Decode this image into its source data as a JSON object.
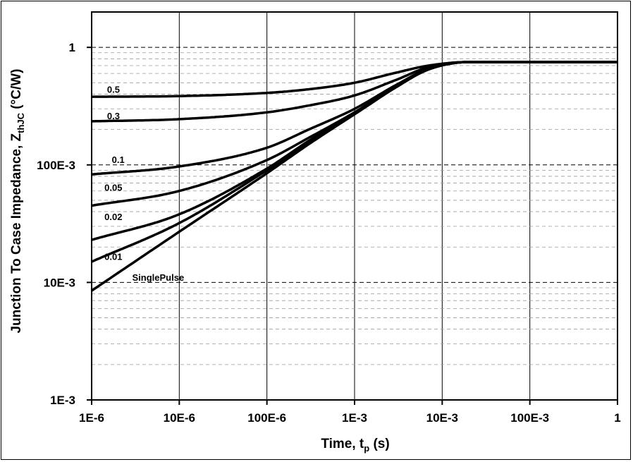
{
  "chart_data": {
    "type": "line",
    "title": "",
    "xlabel": {
      "main": "Time, t",
      "sub": "p",
      "unit": " (s)"
    },
    "ylabel": {
      "main": "Junction To Case Impedance, Z",
      "sub": "thJC",
      "unit": " (°C/W)"
    },
    "x_scale": "log",
    "y_scale": "log",
    "xlim": [
      1e-06,
      1
    ],
    "ylim": [
      0.001,
      2
    ],
    "x_ticks": [
      {
        "value": 1e-06,
        "label": "1E-6"
      },
      {
        "value": 1e-05,
        "label": "10E-6"
      },
      {
        "value": 0.0001,
        "label": "100E-6"
      },
      {
        "value": 0.001,
        "label": "1E-3"
      },
      {
        "value": 0.01,
        "label": "10E-3"
      },
      {
        "value": 0.1,
        "label": "100E-3"
      },
      {
        "value": 1,
        "label": "1"
      }
    ],
    "y_ticks": [
      {
        "value": 0.001,
        "label": "1E-3"
      },
      {
        "value": 0.01,
        "label": "10E-3"
      },
      {
        "value": 0.1,
        "label": "100E-3"
      },
      {
        "value": 1,
        "label": "1"
      }
    ],
    "grid": {
      "x_major": true,
      "y_major_dashed": true,
      "y_minor_dashed": true
    },
    "series": [
      {
        "name": "0.5",
        "x": [
          1e-06,
          1e-05,
          0.0001,
          0.0003,
          0.001,
          0.003,
          0.007,
          0.02,
          0.1,
          1
        ],
        "y": [
          0.38,
          0.385,
          0.41,
          0.44,
          0.5,
          0.61,
          0.7,
          0.75,
          0.75,
          0.75
        ]
      },
      {
        "name": "0.3",
        "x": [
          1e-06,
          1e-05,
          0.0001,
          0.0003,
          0.001,
          0.003,
          0.007,
          0.02,
          0.1,
          1
        ],
        "y": [
          0.235,
          0.245,
          0.28,
          0.32,
          0.39,
          0.53,
          0.68,
          0.75,
          0.75,
          0.75
        ]
      },
      {
        "name": "0.1",
        "x": [
          1e-06,
          1e-05,
          0.0001,
          0.0003,
          0.001,
          0.003,
          0.007,
          0.02,
          0.1,
          1
        ],
        "y": [
          0.083,
          0.097,
          0.14,
          0.2,
          0.3,
          0.48,
          0.66,
          0.75,
          0.75,
          0.75
        ]
      },
      {
        "name": "0.05",
        "x": [
          1e-06,
          1e-05,
          0.0001,
          0.0003,
          0.001,
          0.003,
          0.007,
          0.02,
          0.1,
          1
        ],
        "y": [
          0.045,
          0.06,
          0.11,
          0.17,
          0.28,
          0.47,
          0.65,
          0.75,
          0.75,
          0.75
        ]
      },
      {
        "name": "0.02",
        "x": [
          1e-06,
          1e-05,
          0.0001,
          0.0003,
          0.001,
          0.003,
          0.007,
          0.02,
          0.1,
          1
        ],
        "y": [
          0.023,
          0.038,
          0.093,
          0.16,
          0.275,
          0.465,
          0.65,
          0.75,
          0.75,
          0.75
        ]
      },
      {
        "name": "0.01",
        "x": [
          1e-06,
          1e-05,
          0.0001,
          0.0003,
          0.001,
          0.003,
          0.007,
          0.02,
          0.1,
          1
        ],
        "y": [
          0.015,
          0.032,
          0.09,
          0.155,
          0.27,
          0.46,
          0.65,
          0.75,
          0.75,
          0.75
        ]
      },
      {
        "name": "SinglePulse",
        "x": [
          1e-06,
          1e-05,
          0.0001,
          0.0003,
          0.001,
          0.003,
          0.007,
          0.02,
          0.1,
          1
        ],
        "y": [
          0.0085,
          0.027,
          0.085,
          0.15,
          0.27,
          0.46,
          0.65,
          0.75,
          0.75,
          0.75
        ]
      }
    ],
    "series_label_anchors": [
      {
        "text": "0.5",
        "x": 1.5e-06,
        "y": 0.41
      },
      {
        "text": "0.3",
        "x": 1.5e-06,
        "y": 0.245
      },
      {
        "text": "0.1",
        "x": 1.7e-06,
        "y": 0.104
      },
      {
        "text": "0.05",
        "x": 1.4e-06,
        "y": 0.06
      },
      {
        "text": "0.02",
        "x": 1.4e-06,
        "y": 0.034
      },
      {
        "text": "0.01",
        "x": 1.4e-06,
        "y": 0.0155
      },
      {
        "text": "SinglePulse",
        "x": 2.9e-06,
        "y": 0.0103
      }
    ]
  }
}
